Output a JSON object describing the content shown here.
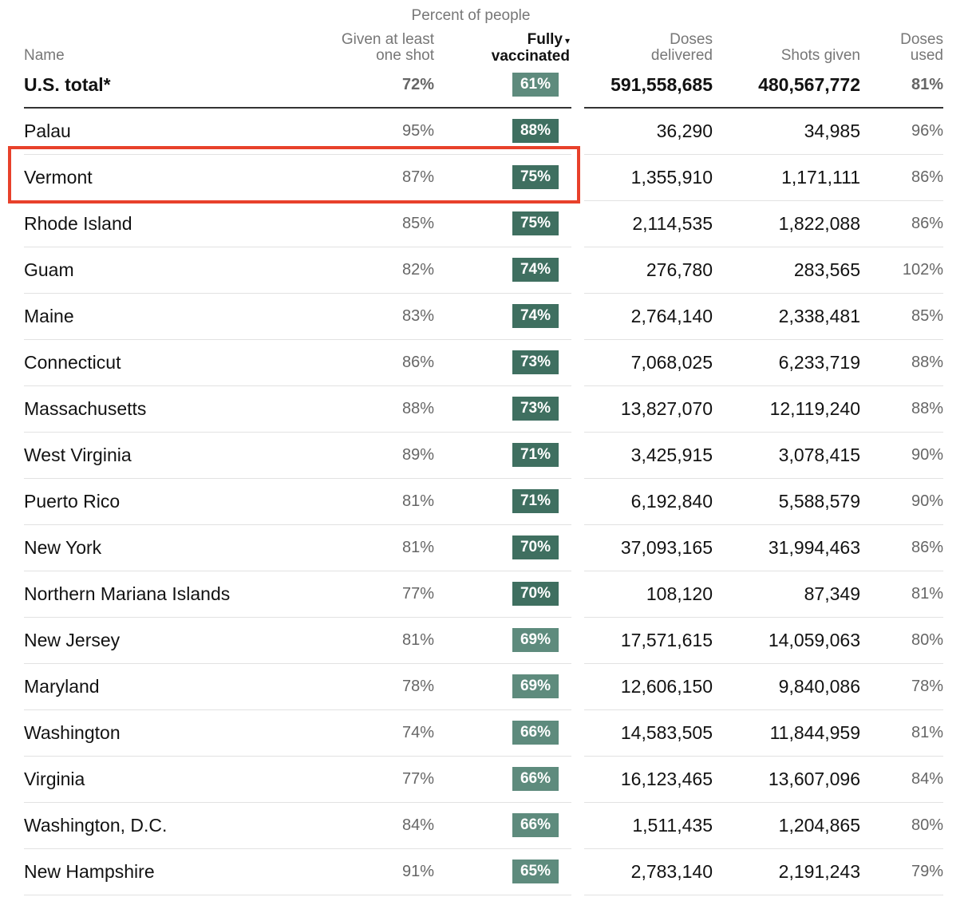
{
  "header": {
    "super_label": "Percent of people",
    "col_name": "Name",
    "col_one_shot": [
      "Given at least",
      "one shot"
    ],
    "col_fully": [
      "Fully",
      "vaccinated"
    ],
    "col_fully_sort_icon": "▾",
    "col_delivered": [
      "Doses",
      "delivered"
    ],
    "col_shots": "Shots given",
    "col_used": [
      "Doses",
      "used"
    ]
  },
  "total": {
    "name": "U.S. total*",
    "one_shot": "72%",
    "fully": "61%",
    "delivered": "591,558,685",
    "shots": "480,567,772",
    "used": "81%"
  },
  "rows": [
    {
      "name": "Palau",
      "one_shot": "95%",
      "fully": "88%",
      "delivered": "36,290",
      "shots": "34,985",
      "used": "96%"
    },
    {
      "name": "Vermont",
      "one_shot": "87%",
      "fully": "75%",
      "delivered": "1,355,910",
      "shots": "1,171,111",
      "used": "86%"
    },
    {
      "name": "Rhode Island",
      "one_shot": "85%",
      "fully": "75%",
      "delivered": "2,114,535",
      "shots": "1,822,088",
      "used": "86%"
    },
    {
      "name": "Guam",
      "one_shot": "82%",
      "fully": "74%",
      "delivered": "276,780",
      "shots": "283,565",
      "used": "102%"
    },
    {
      "name": "Maine",
      "one_shot": "83%",
      "fully": "74%",
      "delivered": "2,764,140",
      "shots": "2,338,481",
      "used": "85%"
    },
    {
      "name": "Connecticut",
      "one_shot": "86%",
      "fully": "73%",
      "delivered": "7,068,025",
      "shots": "6,233,719",
      "used": "88%"
    },
    {
      "name": "Massachusetts",
      "one_shot": "88%",
      "fully": "73%",
      "delivered": "13,827,070",
      "shots": "12,119,240",
      "used": "88%"
    },
    {
      "name": "West Virginia",
      "one_shot": "89%",
      "fully": "71%",
      "delivered": "3,425,915",
      "shots": "3,078,415",
      "used": "90%"
    },
    {
      "name": "Puerto Rico",
      "one_shot": "81%",
      "fully": "71%",
      "delivered": "6,192,840",
      "shots": "5,588,579",
      "used": "90%"
    },
    {
      "name": "New York",
      "one_shot": "81%",
      "fully": "70%",
      "delivered": "37,093,165",
      "shots": "31,994,463",
      "used": "86%"
    },
    {
      "name": "Northern Mariana Islands",
      "one_shot": "77%",
      "fully": "70%",
      "delivered": "108,120",
      "shots": "87,349",
      "used": "81%"
    },
    {
      "name": "New Jersey",
      "one_shot": "81%",
      "fully": "69%",
      "delivered": "17,571,615",
      "shots": "14,059,063",
      "used": "80%"
    },
    {
      "name": "Maryland",
      "one_shot": "78%",
      "fully": "69%",
      "delivered": "12,606,150",
      "shots": "9,840,086",
      "used": "78%"
    },
    {
      "name": "Washington",
      "one_shot": "74%",
      "fully": "66%",
      "delivered": "14,583,505",
      "shots": "11,844,959",
      "used": "81%"
    },
    {
      "name": "Virginia",
      "one_shot": "77%",
      "fully": "66%",
      "delivered": "16,123,465",
      "shots": "13,607,096",
      "used": "84%"
    },
    {
      "name": "Washington, D.C.",
      "one_shot": "84%",
      "fully": "66%",
      "delivered": "1,511,435",
      "shots": "1,204,865",
      "used": "80%"
    },
    {
      "name": "New Hampshire",
      "one_shot": "91%",
      "fully": "65%",
      "delivered": "2,783,140",
      "shots": "2,191,243",
      "used": "79%"
    }
  ],
  "colors": {
    "badge_dark": "#3f6f60",
    "badge_light": "#5e8b7d",
    "highlight_border": "#e8412b"
  },
  "highlighted_row": "Vermont"
}
